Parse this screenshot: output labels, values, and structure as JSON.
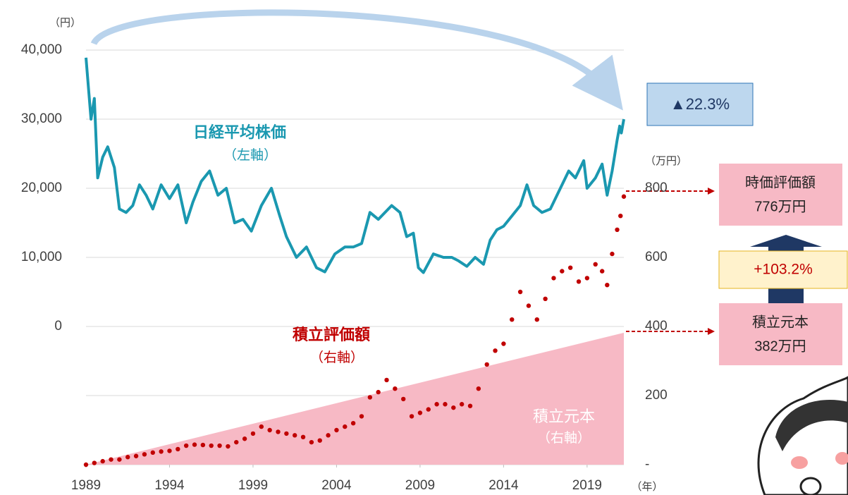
{
  "chart_data": {
    "type": "combo",
    "xlim": [
      1989,
      2021.2
    ],
    "xticks": [
      1989,
      1994,
      1999,
      2004,
      2009,
      2014,
      2019
    ],
    "ylim": [
      -20000,
      40000
    ],
    "yticks": [
      {
        "value": 0,
        "label": "0"
      },
      {
        "value": 10000,
        "label": "10,000"
      },
      {
        "value": 20000,
        "label": "20,000"
      },
      {
        "value": 30000,
        "label": "30,000"
      },
      {
        "value": 40000,
        "label": "40,000"
      }
    ],
    "y2lim": [
      0,
      1200
    ],
    "y2ticks": [
      {
        "value": 0,
        "label": "-"
      },
      200,
      400,
      600,
      800
    ],
    "grid": true,
    "series": [
      {
        "name": "積立元本",
        "type": "area",
        "axis": "y2",
        "color": "#f7b9c5",
        "x": [
          1989,
          2021.2
        ],
        "values": [
          0,
          382
        ]
      },
      {
        "name": "日経平均株価",
        "type": "line",
        "axis": "y",
        "color": "#1a98b0",
        "x": [
          1989,
          1989.3,
          1989.5,
          1989.7,
          1990,
          1990.3,
          1990.7,
          1991,
          1991.4,
          1991.8,
          1992.2,
          1992.6,
          1993,
          1993.5,
          1994,
          1994.5,
          1995,
          1995.4,
          1995.9,
          1996.4,
          1996.9,
          1997.4,
          1997.9,
          1998.4,
          1998.9,
          1999.5,
          2000.1,
          2000.6,
          2001,
          2001.6,
          2002.2,
          2002.8,
          2003.3,
          2003.9,
          2004.5,
          2005,
          2005.5,
          2006,
          2006.5,
          2007.3,
          2007.8,
          2008.2,
          2008.6,
          2008.9,
          2009.2,
          2009.8,
          2010.4,
          2010.9,
          2011.3,
          2011.8,
          2012.3,
          2012.8,
          2013.2,
          2013.6,
          2014,
          2014.5,
          2015,
          2015.4,
          2015.8,
          2016.3,
          2016.8,
          2017.3,
          2017.9,
          2018.3,
          2018.8,
          2019,
          2019.5,
          2019.9,
          2020.2,
          2020.5,
          2020.8,
          2020.95,
          2021.05,
          2021.2
        ],
        "values": [
          38900,
          30000,
          33000,
          21500,
          24500,
          26000,
          23000,
          17000,
          16500,
          17500,
          20500,
          19000,
          17000,
          20500,
          18500,
          20500,
          15000,
          18000,
          21000,
          22500,
          19000,
          20000,
          15000,
          15500,
          13800,
          17500,
          20000,
          16000,
          13000,
          10000,
          11500,
          8500,
          7900,
          10500,
          11500,
          11500,
          12000,
          16500,
          15500,
          17500,
          16500,
          13000,
          13500,
          8500,
          7800,
          10500,
          10000,
          10000,
          9500,
          8700,
          10000,
          9000,
          12500,
          14000,
          14500,
          16000,
          17500,
          20500,
          17500,
          16500,
          17000,
          19500,
          22500,
          21500,
          24000,
          20000,
          21500,
          23500,
          19000,
          22500,
          27000,
          29000,
          28000,
          30000
        ]
      },
      {
        "name": "積立評価額",
        "type": "scatter",
        "axis": "y2",
        "color": "#c00000",
        "x": [
          1989,
          1989.5,
          1990,
          1990.5,
          1991,
          1991.5,
          1992,
          1992.5,
          1993,
          1993.5,
          1994,
          1994.5,
          1995,
          1995.5,
          1996,
          1996.5,
          1997,
          1997.5,
          1998,
          1998.5,
          1999,
          1999.5,
          2000,
          2000.5,
          2001,
          2001.5,
          2002,
          2002.5,
          2003,
          2003.5,
          2004,
          2004.5,
          2005,
          2005.5,
          2006,
          2006.5,
          2007,
          2007.5,
          2008,
          2008.5,
          2009,
          2009.5,
          2010,
          2010.5,
          2011,
          2011.5,
          2012,
          2012.5,
          2013,
          2013.5,
          2014,
          2014.5,
          2015,
          2015.5,
          2016,
          2016.5,
          2017,
          2017.5,
          2018,
          2018.5,
          2019,
          2019.5,
          2019.9,
          2020.2,
          2020.5,
          2020.8,
          2021,
          2021.2
        ],
        "values": [
          0,
          5,
          10,
          15,
          15,
          22,
          25,
          30,
          35,
          38,
          40,
          45,
          55,
          58,
          57,
          55,
          55,
          53,
          65,
          75,
          90,
          110,
          100,
          95,
          90,
          85,
          80,
          65,
          70,
          85,
          100,
          110,
          120,
          140,
          195,
          210,
          245,
          220,
          190,
          140,
          150,
          160,
          175,
          175,
          165,
          175,
          170,
          220,
          290,
          330,
          350,
          420,
          500,
          460,
          420,
          480,
          540,
          560,
          570,
          530,
          540,
          580,
          560,
          520,
          610,
          680,
          720,
          776
        ]
      }
    ],
    "annotations": {
      "y_unit": "（円）",
      "y2_unit": "（万円）",
      "x_unit": "（年）",
      "line_axis": "（左軸）",
      "scatter_axis": "（右軸）",
      "area_axis": "（右軸）",
      "change": "▲22.3%",
      "market_title": "時価評価額",
      "market_value": "776万円",
      "gain": "+103.2%",
      "principal_title": "積立元本",
      "principal_value": "382万円"
    }
  }
}
